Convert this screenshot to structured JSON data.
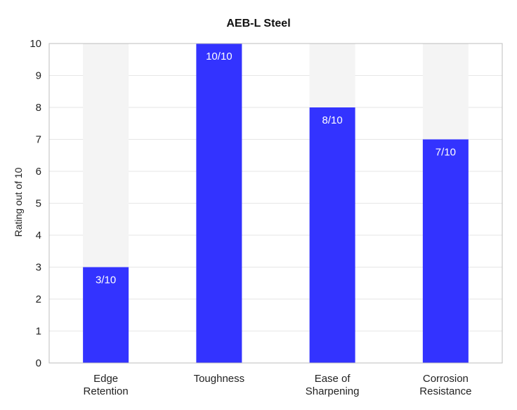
{
  "chart_data": {
    "type": "bar",
    "title": "AEB-L Steel",
    "ylabel": "Rating out of 10",
    "xlabel": "",
    "ylim": [
      0,
      10
    ],
    "yticks": [
      "0",
      "1",
      "2",
      "3",
      "4",
      "5",
      "6",
      "7",
      "8",
      "9",
      "10"
    ],
    "categories": [
      [
        "Edge",
        "Retention"
      ],
      [
        "Toughness"
      ],
      [
        "Ease of",
        "Sharpening"
      ],
      [
        "Corrosion",
        "Resistance"
      ]
    ],
    "values": [
      3,
      10,
      8,
      7
    ],
    "max_value": 10,
    "data_labels": [
      "3/10",
      "10/10",
      "8/10",
      "7/10"
    ],
    "grid": true,
    "colors": {
      "bar": "#3333ff",
      "background_bar": "#f4f4f4"
    }
  }
}
